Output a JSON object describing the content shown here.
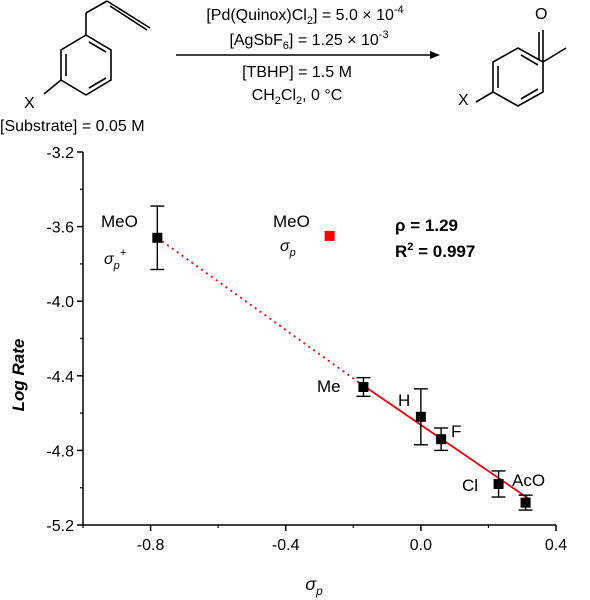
{
  "scheme": {
    "substrate_group": "X",
    "substrate_conc": "[Substrate] = 0.05 M",
    "product_group": "X",
    "product_oxygen": "O",
    "conditions": {
      "catalyst_prefix": "[Pd(Quinox)Cl",
      "catalyst_sub": "2",
      "catalyst_suffix": "] = 5.0 × 10",
      "catalyst_exp": "-4",
      "salt_prefix": "[AgSbF",
      "salt_sub": "6",
      "salt_suffix": "] = 1.25 × 10",
      "salt_exp": "-3",
      "oxidant": "[TBHP] = 1.5 M",
      "solvent_prefix": "CH",
      "solvent_sub1": "2",
      "solvent_mid": "Cl",
      "solvent_sub2": "2",
      "solvent_suffix": ", 0 °C"
    }
  },
  "chart_data": {
    "type": "scatter",
    "xlabel_symbol": "σ",
    "xlabel_sub": "p",
    "ylabel": "Log Rate",
    "xlim": [
      -1.0,
      0.4
    ],
    "ylim": [
      -5.2,
      -3.2
    ],
    "xticks": [
      -0.8,
      -0.4,
      0.0,
      0.4
    ],
    "xtick_labels": [
      "-0.8",
      "-0.4",
      "0.0",
      "0.4"
    ],
    "yticks": [
      -3.2,
      -3.6,
      -4.0,
      -4.4,
      -4.8,
      -5.2
    ],
    "ytick_labels": [
      "-3.2",
      "-3.6",
      "-4.0",
      "-4.4",
      "-4.8",
      "-5.2"
    ],
    "points": [
      {
        "label": "MeO",
        "x": -0.78,
        "y": -3.66,
        "err": 0.17,
        "color": "#000000"
      },
      {
        "label": "Me",
        "x": -0.17,
        "y": -4.46,
        "err": 0.05,
        "color": "#000000"
      },
      {
        "label": "H",
        "x": 0.0,
        "y": -4.62,
        "err": 0.15,
        "color": "#000000"
      },
      {
        "label": "F",
        "x": 0.06,
        "y": -4.74,
        "err": 0.06,
        "color": "#000000"
      },
      {
        "label": "Cl",
        "x": 0.23,
        "y": -4.98,
        "err": 0.07,
        "color": "#000000"
      },
      {
        "label": "AcO",
        "x": 0.31,
        "y": -5.08,
        "err": 0.04,
        "color": "#000000"
      },
      {
        "label": "MeO",
        "x": -0.27,
        "y": -3.65,
        "err": 0,
        "color": "#ff0000"
      }
    ],
    "annotations": {
      "meo_black_sigma": "σ",
      "meo_black_sub": "p",
      "meo_black_sup": "+",
      "meo_red_sigma": "σ",
      "meo_red_sub": "p"
    },
    "fit_line": {
      "x": [
        -0.18,
        0.32
      ],
      "y": [
        -4.44,
        -5.06
      ],
      "color": "#e8000b"
    },
    "dotted_line": {
      "x": [
        -0.78,
        -0.18
      ],
      "y": [
        -3.66,
        -4.44
      ],
      "color": "#e8000b"
    },
    "stats": {
      "rho_label": "ρ = ",
      "rho_value": "1.29",
      "r2_label": "R",
      "r2_sup": "2",
      "r2_value": " = 0.997"
    }
  }
}
